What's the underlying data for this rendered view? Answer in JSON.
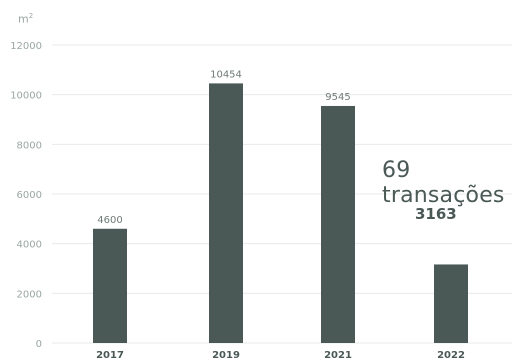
{
  "chart_data": {
    "type": "bar",
    "y_unit": "m",
    "y_unit_sup": "2",
    "categories": [
      "2017",
      "2019",
      "2021",
      "2022"
    ],
    "values": [
      4600,
      10454,
      9545,
      3163
    ],
    "data_labels": [
      "4600",
      "10454",
      "9545",
      ""
    ],
    "yticks": [
      0,
      2000,
      4000,
      6000,
      8000,
      10000,
      12000
    ],
    "ylim": [
      0,
      12000
    ],
    "grid": true,
    "bar_color": "#4a5856",
    "grid_color": "#e6ebe9",
    "tick_color": "#9aa7a3",
    "annotation": {
      "text": "69 transações",
      "value": "3163"
    }
  }
}
